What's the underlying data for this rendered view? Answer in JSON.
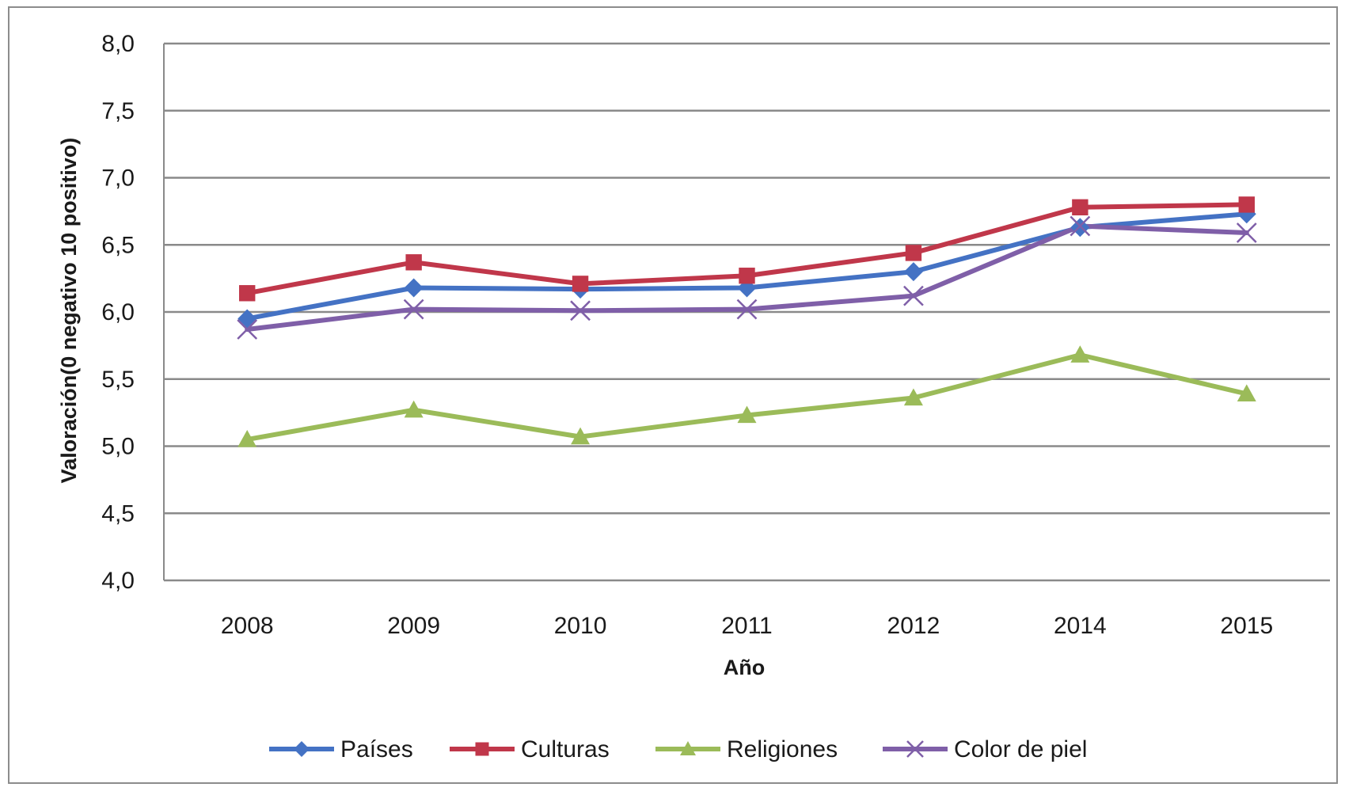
{
  "chart_data": {
    "type": "line",
    "title": "",
    "xlabel": "Año",
    "ylabel": "Valoración(0 negativo 10 positivo)",
    "categories": [
      "2008",
      "2009",
      "2010",
      "2011",
      "2012",
      "2014",
      "2015"
    ],
    "ylim": [
      4.0,
      8.0
    ],
    "yticks": [
      "4,0",
      "4,5",
      "5,0",
      "5,5",
      "6,0",
      "6,5",
      "7,0",
      "7,5",
      "8,0"
    ],
    "ytick_values": [
      4.0,
      4.5,
      5.0,
      5.5,
      6.0,
      6.5,
      7.0,
      7.5,
      8.0
    ],
    "grid": true,
    "legend_position": "bottom",
    "series": [
      {
        "name": "Países",
        "color": "#4472c4",
        "marker": "diamond",
        "values": [
          5.95,
          6.18,
          6.17,
          6.18,
          6.3,
          6.63,
          6.73
        ]
      },
      {
        "name": "Culturas",
        "color": "#c0374a",
        "marker": "square",
        "values": [
          6.14,
          6.37,
          6.21,
          6.27,
          6.44,
          6.78,
          6.8
        ]
      },
      {
        "name": "Religiones",
        "color": "#9bbb59",
        "marker": "triangle",
        "values": [
          5.05,
          5.27,
          5.07,
          5.23,
          5.36,
          5.68,
          5.39
        ]
      },
      {
        "name": "Color de piel",
        "color": "#7f5fa8",
        "marker": "x",
        "values": [
          5.87,
          6.02,
          6.01,
          6.02,
          6.12,
          6.64,
          6.59
        ]
      }
    ]
  }
}
